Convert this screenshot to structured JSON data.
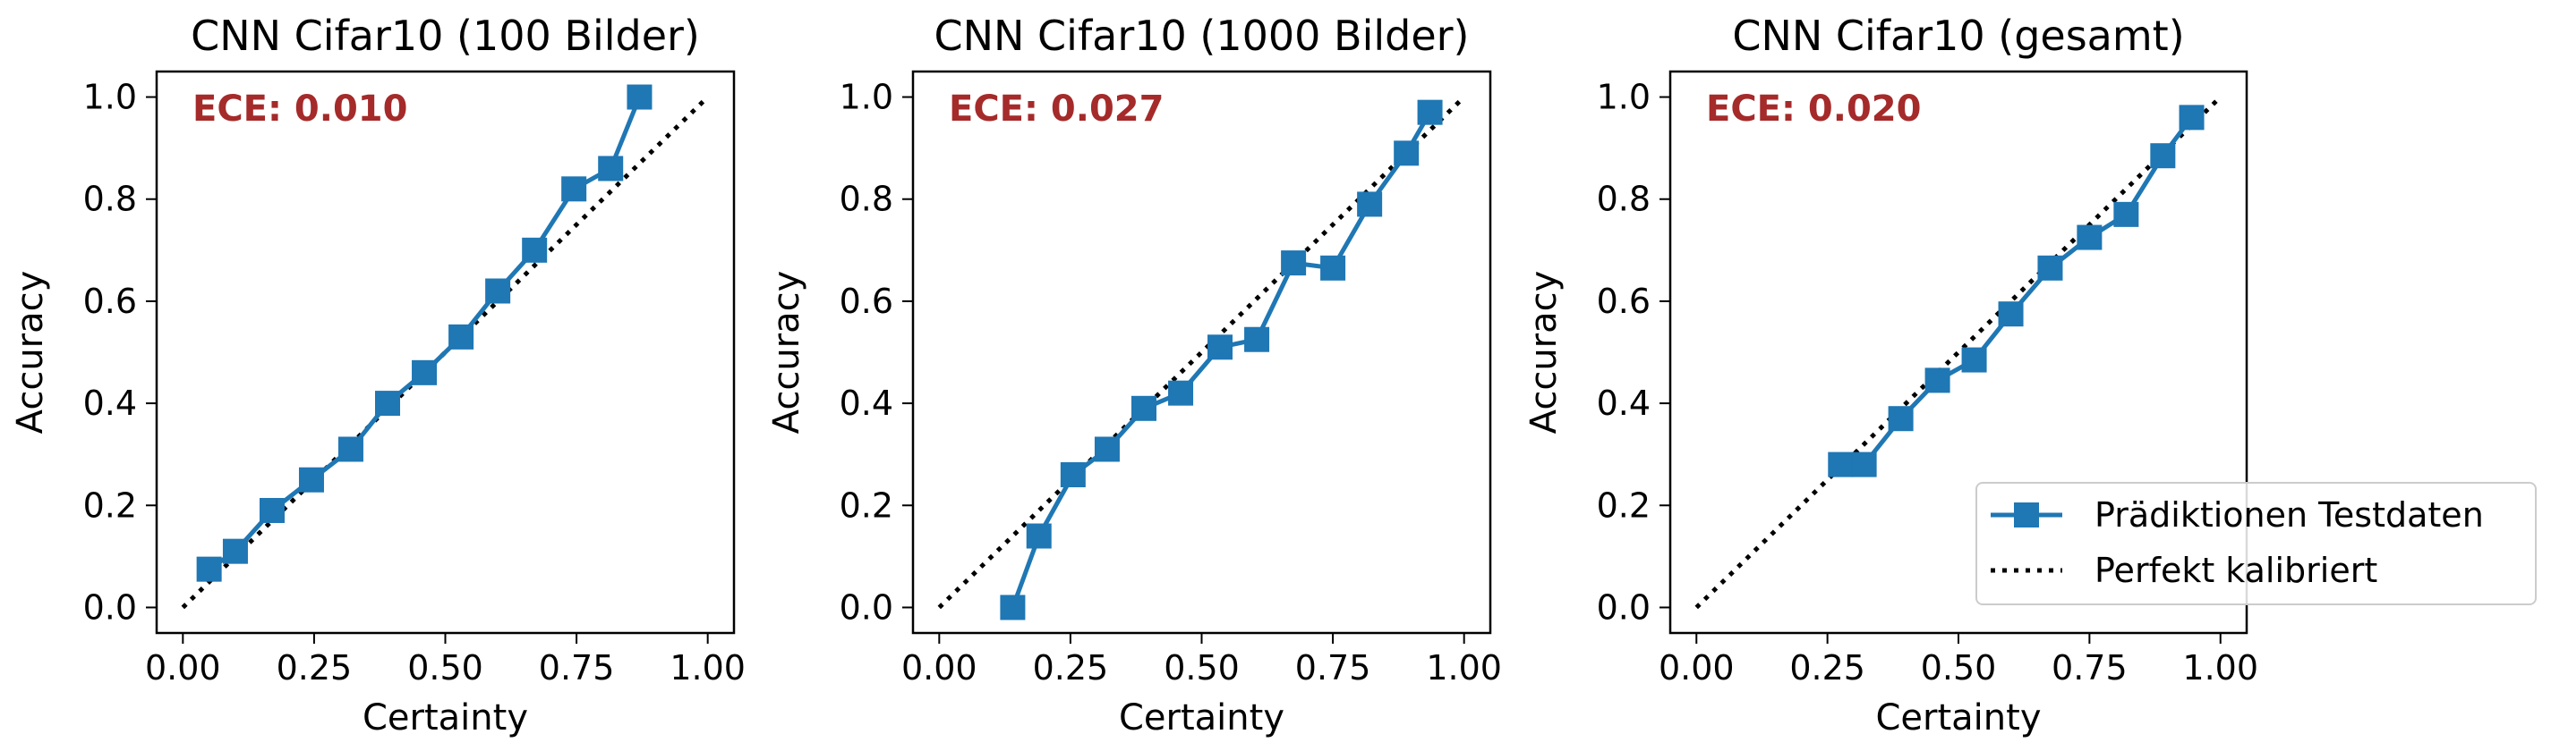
{
  "figure": {
    "legend": {
      "entries": [
        {
          "label": "Prädiktionen Testdaten",
          "style": "line-square-marker"
        },
        {
          "label": "Perfekt kalibriert",
          "style": "dotted-line"
        }
      ],
      "placement": "lower-right (overlapping third panel)"
    }
  },
  "colors": {
    "series": "#1f77b4",
    "diagonal": "#000000",
    "ece_text": "#a52a2a",
    "axes": "#000000",
    "background": "#ffffff"
  },
  "chart_data": [
    {
      "type": "line",
      "title": "CNN Cifar10 (100 Bilder)",
      "xlabel": "Certainty",
      "ylabel": "Accuracy",
      "annotation": "ECE: 0.010",
      "xlim": [
        -0.05,
        1.05
      ],
      "ylim": [
        -0.05,
        1.05
      ],
      "xticks": [
        0.0,
        0.25,
        0.5,
        0.75,
        1.0
      ],
      "xtick_labels": [
        "0.00",
        "0.25",
        "0.50",
        "0.75",
        "1.00"
      ],
      "yticks": [
        0.0,
        0.2,
        0.4,
        0.6,
        0.8,
        1.0
      ],
      "ytick_labels": [
        "0.0",
        "0.2",
        "0.4",
        "0.6",
        "0.8",
        "1.0"
      ],
      "grid": false,
      "series": [
        {
          "name": "Prädiktionen Testdaten",
          "x": [
            0.05,
            0.1,
            0.17,
            0.245,
            0.32,
            0.39,
            0.46,
            0.53,
            0.6,
            0.67,
            0.745,
            0.815,
            0.87
          ],
          "y": [
            0.075,
            0.11,
            0.19,
            0.25,
            0.31,
            0.4,
            0.46,
            0.53,
            0.62,
            0.7,
            0.82,
            0.86,
            1.0
          ]
        },
        {
          "name": "Perfekt kalibriert",
          "x": [
            0.0,
            1.0
          ],
          "y": [
            0.0,
            1.0
          ]
        }
      ]
    },
    {
      "type": "line",
      "title": "CNN Cifar10 (1000 Bilder)",
      "xlabel": "Certainty",
      "ylabel": "Accuracy",
      "annotation": "ECE: 0.027",
      "xlim": [
        -0.05,
        1.05
      ],
      "ylim": [
        -0.05,
        1.05
      ],
      "xticks": [
        0.0,
        0.25,
        0.5,
        0.75,
        1.0
      ],
      "xtick_labels": [
        "0.00",
        "0.25",
        "0.50",
        "0.75",
        "1.00"
      ],
      "yticks": [
        0.0,
        0.2,
        0.4,
        0.6,
        0.8,
        1.0
      ],
      "ytick_labels": [
        "0.0",
        "0.2",
        "0.4",
        "0.6",
        "0.8",
        "1.0"
      ],
      "grid": false,
      "series": [
        {
          "name": "Prädiktionen Testdaten",
          "x": [
            0.14,
            0.19,
            0.255,
            0.32,
            0.39,
            0.46,
            0.535,
            0.605,
            0.675,
            0.75,
            0.82,
            0.89,
            0.935
          ],
          "y": [
            0.0,
            0.14,
            0.26,
            0.31,
            0.39,
            0.42,
            0.51,
            0.525,
            0.675,
            0.665,
            0.79,
            0.89,
            0.97
          ]
        },
        {
          "name": "Perfekt kalibriert",
          "x": [
            0.0,
            1.0
          ],
          "y": [
            0.0,
            1.0
          ]
        }
      ]
    },
    {
      "type": "line",
      "title": "CNN Cifar10 (gesamt)",
      "xlabel": "Certainty",
      "ylabel": "Accuracy",
      "annotation": "ECE: 0.020",
      "xlim": [
        -0.05,
        1.05
      ],
      "ylim": [
        -0.05,
        1.05
      ],
      "xticks": [
        0.0,
        0.25,
        0.5,
        0.75,
        1.0
      ],
      "xtick_labels": [
        "0.00",
        "0.25",
        "0.50",
        "0.75",
        "1.00"
      ],
      "yticks": [
        0.0,
        0.2,
        0.4,
        0.6,
        0.8,
        1.0
      ],
      "ytick_labels": [
        "0.0",
        "0.2",
        "0.4",
        "0.6",
        "0.8",
        "1.0"
      ],
      "grid": false,
      "series": [
        {
          "name": "Prädiktionen Testdaten",
          "x": [
            0.275,
            0.32,
            0.39,
            0.46,
            0.53,
            0.6,
            0.675,
            0.75,
            0.82,
            0.89,
            0.945
          ],
          "y": [
            0.28,
            0.28,
            0.37,
            0.445,
            0.485,
            0.575,
            0.665,
            0.725,
            0.77,
            0.885,
            0.96
          ]
        },
        {
          "name": "Perfekt kalibriert",
          "x": [
            0.0,
            1.0
          ],
          "y": [
            0.0,
            1.0
          ]
        }
      ]
    }
  ]
}
